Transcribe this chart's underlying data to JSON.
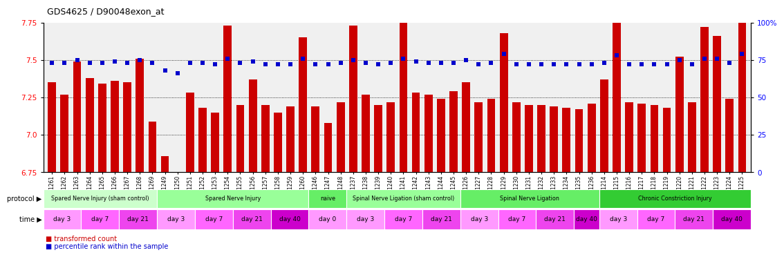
{
  "title": "GDS4625 / D90048exon_at",
  "sample_ids": [
    "GSM761261",
    "GSM761262",
    "GSM761263",
    "GSM761264",
    "GSM761265",
    "GSM761266",
    "GSM761267",
    "GSM761268",
    "GSM761269",
    "GSM761249",
    "GSM761250",
    "GSM761251",
    "GSM761252",
    "GSM761253",
    "GSM761254",
    "GSM761255",
    "GSM761256",
    "GSM761257",
    "GSM761258",
    "GSM761259",
    "GSM761260",
    "GSM761246",
    "GSM761247",
    "GSM761248",
    "GSM761237",
    "GSM761238",
    "GSM761239",
    "GSM761240",
    "GSM761241",
    "GSM761242",
    "GSM761243",
    "GSM761244",
    "GSM761245",
    "GSM761226",
    "GSM761227",
    "GSM761228",
    "GSM761229",
    "GSM761230",
    "GSM761231",
    "GSM761232",
    "GSM761233",
    "GSM761234",
    "GSM761235",
    "GSM761236",
    "GSM761214",
    "GSM761215",
    "GSM761216",
    "GSM761217",
    "GSM761218",
    "GSM761219",
    "GSM761220",
    "GSM761221",
    "GSM761222",
    "GSM761223",
    "GSM761224",
    "GSM761225"
  ],
  "bar_values": [
    7.35,
    7.27,
    7.49,
    7.38,
    7.34,
    7.36,
    7.35,
    7.51,
    7.09,
    6.86,
    6.68,
    7.28,
    7.18,
    7.15,
    7.73,
    7.2,
    7.37,
    7.2,
    7.15,
    7.19,
    7.65,
    7.19,
    7.08,
    7.22,
    7.73,
    7.27,
    7.2,
    7.22,
    7.76,
    7.28,
    7.27,
    7.24,
    7.29,
    7.35,
    7.22,
    7.24,
    7.68,
    7.22,
    7.2,
    7.2,
    7.19,
    7.18,
    7.17,
    7.21,
    7.37,
    7.87,
    7.22,
    7.21,
    7.2,
    7.18,
    7.52,
    7.22,
    7.72,
    7.66,
    7.24,
    7.75
  ],
  "percentile_values": [
    73,
    73,
    75,
    73,
    73,
    74,
    73,
    75,
    73,
    68,
    66,
    73,
    73,
    72,
    76,
    73,
    74,
    72,
    72,
    72,
    76,
    72,
    72,
    73,
    75,
    73,
    72,
    73,
    76,
    74,
    73,
    73,
    73,
    75,
    72,
    73,
    79,
    72,
    72,
    72,
    72,
    72,
    72,
    72,
    73,
    78,
    72,
    72,
    72,
    72,
    75,
    72,
    76,
    76,
    73,
    79
  ],
  "ylim_left": [
    6.75,
    7.75
  ],
  "ylim_right": [
    0,
    100
  ],
  "yticks_left": [
    6.75,
    7.0,
    7.25,
    7.5,
    7.75
  ],
  "yticks_right": [
    0,
    25,
    50,
    75,
    100
  ],
  "bar_color": "#cc0000",
  "dot_color": "#0000cc",
  "protocol_groups": [
    {
      "label": "Spared Nerve Injury (sham control)",
      "start": 0,
      "end": 9,
      "color": "#ccffcc"
    },
    {
      "label": "Spared Nerve Injury",
      "start": 9,
      "end": 21,
      "color": "#99ff99"
    },
    {
      "label": "naive",
      "start": 21,
      "end": 24,
      "color": "#66ee66"
    },
    {
      "label": "Spinal Nerve Ligation (sham control)",
      "start": 24,
      "end": 33,
      "color": "#99ff99"
    },
    {
      "label": "Spinal Nerve Ligation",
      "start": 33,
      "end": 44,
      "color": "#66ee66"
    },
    {
      "label": "Chronic Constriction Injury",
      "start": 44,
      "end": 56,
      "color": "#33cc33"
    }
  ],
  "time_groups": [
    {
      "label": "day 3",
      "start": 0,
      "end": 3,
      "color": "#ff99ff"
    },
    {
      "label": "day 7",
      "start": 3,
      "end": 6,
      "color": "#ff66ff"
    },
    {
      "label": "day 21",
      "start": 6,
      "end": 9,
      "color": "#ee44ee"
    },
    {
      "label": "day 3",
      "start": 9,
      "end": 12,
      "color": "#ff99ff"
    },
    {
      "label": "day 7",
      "start": 12,
      "end": 15,
      "color": "#ff66ff"
    },
    {
      "label": "day 21",
      "start": 15,
      "end": 18,
      "color": "#ee44ee"
    },
    {
      "label": "day 40",
      "start": 18,
      "end": 21,
      "color": "#cc00cc"
    },
    {
      "label": "day 0",
      "start": 21,
      "end": 24,
      "color": "#ff99ff"
    },
    {
      "label": "day 3",
      "start": 24,
      "end": 27,
      "color": "#ff99ff"
    },
    {
      "label": "day 7",
      "start": 27,
      "end": 30,
      "color": "#ff66ff"
    },
    {
      "label": "day 21",
      "start": 30,
      "end": 33,
      "color": "#ee44ee"
    },
    {
      "label": "day 3",
      "start": 33,
      "end": 36,
      "color": "#ff99ff"
    },
    {
      "label": "day 7",
      "start": 36,
      "end": 39,
      "color": "#ff66ff"
    },
    {
      "label": "day 21",
      "start": 39,
      "end": 42,
      "color": "#ee44ee"
    },
    {
      "label": "day 40",
      "start": 42,
      "end": 44,
      "color": "#cc00cc"
    },
    {
      "label": "day 3",
      "start": 44,
      "end": 47,
      "color": "#ff99ff"
    },
    {
      "label": "day 7",
      "start": 47,
      "end": 50,
      "color": "#ff66ff"
    },
    {
      "label": "day 21",
      "start": 50,
      "end": 53,
      "color": "#ee44ee"
    },
    {
      "label": "day 40",
      "start": 53,
      "end": 56,
      "color": "#cc00cc"
    }
  ],
  "legend_items": [
    {
      "label": "transformed count",
      "color": "#cc0000"
    },
    {
      "label": "percentile rank within the sample",
      "color": "#0000cc"
    }
  ]
}
